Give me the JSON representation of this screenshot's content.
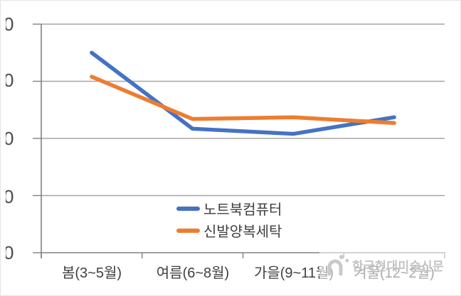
{
  "colors": {
    "series_blue": "#4472C4",
    "series_orange": "#ED7D31",
    "gridline": "#a6a6a6",
    "axis": "#808080",
    "label_text": "#3f3f3f",
    "watermark": "#c3c3c3"
  },
  "chart_data": {
    "type": "line",
    "title": "",
    "xlabel": "",
    "ylabel": "",
    "categories": [
      "봄(3~5월)",
      "여름(6~8월)",
      "가을(9~11월)",
      "겨울(12~2월)"
    ],
    "series": [
      {
        "name": "노트북컴퓨터",
        "color": "#4472C4",
        "values": [
          3.5,
          2.17,
          2.08,
          2.37
        ]
      },
      {
        "name": "신발양복세탁",
        "color": "#ED7D31",
        "values": [
          3.08,
          2.34,
          2.37,
          2.27
        ]
      }
    ],
    "ylim": [
      0,
      4
    ],
    "y_unit_note": "values in gridline units; y-axis numeric labels are cropped at image edge, only a trailing '0' digit is visible per tick",
    "y_tick_labels": [
      "0",
      "0",
      "0",
      "0",
      "0"
    ],
    "grid": true,
    "legend_position": "inside bottom-center"
  },
  "legend": {
    "items": [
      {
        "label": "노트북컴퓨터",
        "color": "#4472C4"
      },
      {
        "label": "신발양복세탁",
        "color": "#ED7D31"
      }
    ]
  },
  "watermark": {
    "text": "한국현대미술신문",
    "icon": "news-logo-icon"
  }
}
